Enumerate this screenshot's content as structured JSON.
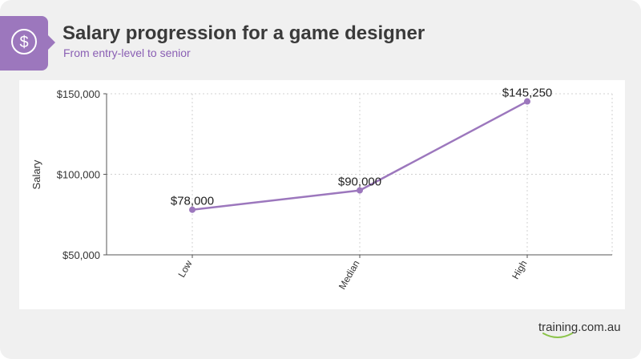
{
  "header": {
    "title": "Salary progression for a game designer",
    "subtitle": "From entry-level to senior",
    "icon": "dollar-icon"
  },
  "brand": {
    "logo_text": "training.com.au",
    "accent": "#9c77bd",
    "smile_color": "#8bc34a"
  },
  "chart_data": {
    "type": "line",
    "categories": [
      "Low",
      "Median",
      "High"
    ],
    "series": [
      {
        "values": [
          78000,
          90000,
          145250
        ]
      }
    ],
    "data_labels": [
      "$78,000",
      "$90,000",
      "$145,250"
    ],
    "ylabel": "Salary",
    "ylim": [
      50000,
      150000
    ],
    "yticks": [
      50000,
      100000,
      150000
    ],
    "ytick_labels": [
      "$50,000",
      "$100,000",
      "$150,000"
    ],
    "grid": true,
    "line_color": "#9c77bd"
  }
}
